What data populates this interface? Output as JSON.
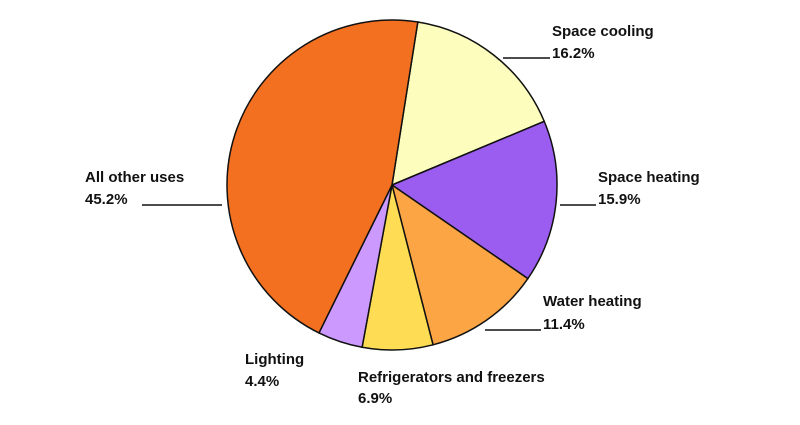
{
  "chart_data": {
    "type": "pie",
    "categories": [
      "Space cooling",
      "Space heating",
      "Water heating",
      "Refrigerators and freezers",
      "Lighting",
      "All other uses"
    ],
    "values": [
      16.2,
      15.9,
      11.4,
      6.9,
      4.4,
      45.2
    ],
    "value_labels": [
      "16.2%",
      "15.9%",
      "11.4%",
      "6.9%",
      "4.4%",
      "45.2%"
    ],
    "colors": [
      "#fdfdbd",
      "#9b5cf0",
      "#fca544",
      "#fedd55",
      "#cc99ff",
      "#f37021"
    ]
  }
}
